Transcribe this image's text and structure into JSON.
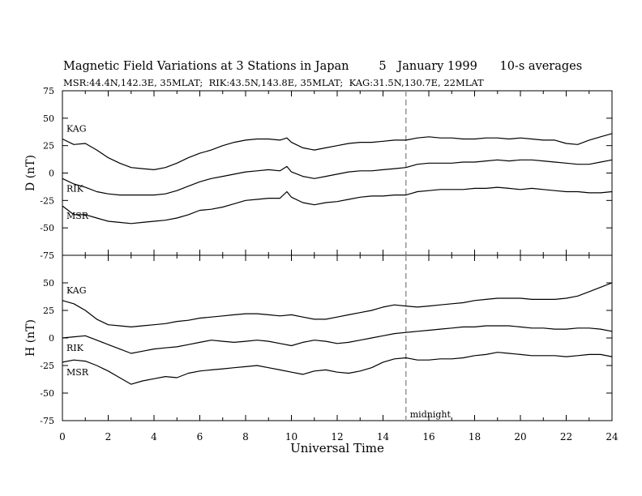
{
  "header": {
    "title": "Magnetic Field Variations at 3 Stations in Japan        5   January 1999      10-s averages",
    "subtitle": "MSR:44.4N,142.3E, 35MLAT;  RIK:43.5N,143.8E, 35MLAT;  KAG:31.5N,130.7E, 22MLAT"
  },
  "chart_data": [
    {
      "type": "line",
      "panel": "D",
      "ylabel": "D (nT)",
      "xlim": [
        0,
        24
      ],
      "ylim": [
        -75,
        75
      ],
      "yticks": [
        -75,
        -50,
        -25,
        0,
        25,
        50,
        75
      ],
      "x": [
        0,
        0.5,
        1,
        1.5,
        2,
        2.5,
        3,
        3.5,
        4,
        4.5,
        5,
        5.5,
        6,
        6.5,
        7,
        7.5,
        8,
        8.5,
        9,
        9.5,
        9.8,
        10,
        10.5,
        11,
        11.5,
        12,
        12.5,
        13,
        13.5,
        14,
        14.5,
        15,
        15.5,
        16,
        16.5,
        17,
        17.5,
        18,
        18.5,
        19,
        19.5,
        20,
        20.5,
        21,
        21.5,
        22,
        22.5,
        23,
        23.5,
        24
      ],
      "series": [
        {
          "name": "KAG",
          "values": [
            31,
            26,
            27,
            21,
            14,
            9,
            5,
            4,
            3,
            5,
            9,
            14,
            18,
            21,
            25,
            28,
            30,
            31,
            31,
            30,
            32,
            28,
            23,
            21,
            23,
            25,
            27,
            28,
            28,
            29,
            30,
            30,
            32,
            33,
            32,
            32,
            31,
            31,
            32,
            32,
            31,
            32,
            31,
            30,
            30,
            27,
            26,
            30,
            33,
            36
          ]
        },
        {
          "name": "RIK",
          "values": [
            -5,
            -10,
            -13,
            -17,
            -19,
            -20,
            -20,
            -20,
            -20,
            -19,
            -16,
            -12,
            -8,
            -5,
            -3,
            -1,
            1,
            2,
            3,
            2,
            6,
            1,
            -3,
            -5,
            -3,
            -1,
            1,
            2,
            2,
            3,
            4,
            5,
            8,
            9,
            9,
            9,
            10,
            10,
            11,
            12,
            11,
            12,
            12,
            11,
            10,
            9,
            8,
            8,
            10,
            12
          ]
        },
        {
          "name": "MSR",
          "values": [
            -30,
            -38,
            -38,
            -41,
            -44,
            -45,
            -46,
            -45,
            -44,
            -43,
            -41,
            -38,
            -34,
            -33,
            -31,
            -28,
            -25,
            -24,
            -23,
            -23,
            -17,
            -22,
            -27,
            -29,
            -27,
            -26,
            -24,
            -22,
            -21,
            -21,
            -20,
            -20,
            -17,
            -16,
            -15,
            -15,
            -15,
            -14,
            -14,
            -13,
            -14,
            -15,
            -14,
            -15,
            -16,
            -17,
            -17,
            -18,
            -18,
            -17
          ]
        }
      ],
      "annotations": [
        {
          "text": "KAG",
          "series": "KAG"
        },
        {
          "text": "RIK",
          "series": "RIK"
        },
        {
          "text": "MSR",
          "series": "MSR"
        }
      ],
      "midnight_line_x": 15,
      "colors": {
        "lines": "#000000",
        "midnight": "#999999"
      }
    },
    {
      "type": "line",
      "panel": "H",
      "ylabel": "H (nT)",
      "xlabel": "Universal Time",
      "xlim": [
        0,
        24
      ],
      "ylim": [
        -75,
        75
      ],
      "yticks": [
        -75,
        -50,
        -25,
        0,
        25,
        50
      ],
      "xticks": [
        0,
        2,
        4,
        6,
        8,
        10,
        12,
        14,
        16,
        18,
        20,
        22,
        24
      ],
      "x": [
        0,
        0.5,
        1,
        1.5,
        2,
        2.5,
        3,
        3.5,
        4,
        4.5,
        5,
        5.5,
        6,
        6.5,
        7,
        7.5,
        8,
        8.5,
        9,
        9.5,
        10,
        10.5,
        11,
        11.5,
        12,
        12.5,
        13,
        13.5,
        14,
        14.5,
        15,
        15.5,
        16,
        16.5,
        17,
        17.5,
        18,
        18.5,
        19,
        19.5,
        20,
        20.5,
        21,
        21.5,
        22,
        22.5,
        23,
        23.5,
        24
      ],
      "series": [
        {
          "name": "KAG",
          "values": [
            34,
            31,
            25,
            17,
            12,
            11,
            10,
            11,
            12,
            13,
            15,
            16,
            18,
            19,
            20,
            21,
            22,
            22,
            21,
            20,
            21,
            19,
            17,
            17,
            19,
            21,
            23,
            25,
            28,
            30,
            29,
            28,
            29,
            30,
            31,
            32,
            34,
            35,
            36,
            36,
            36,
            35,
            35,
            35,
            36,
            38,
            42,
            46,
            50
          ]
        },
        {
          "name": "RIK",
          "values": [
            0,
            1,
            2,
            -2,
            -6,
            -10,
            -14,
            -12,
            -10,
            -9,
            -8,
            -6,
            -4,
            -2,
            -3,
            -4,
            -3,
            -2,
            -3,
            -5,
            -7,
            -4,
            -2,
            -3,
            -5,
            -4,
            -2,
            0,
            2,
            4,
            5,
            6,
            7,
            8,
            9,
            10,
            10,
            11,
            11,
            11,
            10,
            9,
            9,
            8,
            8,
            9,
            9,
            8,
            6
          ]
        },
        {
          "name": "MSR",
          "values": [
            -22,
            -20,
            -21,
            -25,
            -30,
            -36,
            -42,
            -39,
            -37,
            -35,
            -36,
            -32,
            -30,
            -29,
            -28,
            -27,
            -26,
            -25,
            -27,
            -29,
            -31,
            -33,
            -30,
            -29,
            -31,
            -32,
            -30,
            -27,
            -22,
            -19,
            -18,
            -20,
            -20,
            -19,
            -19,
            -18,
            -16,
            -15,
            -13,
            -14,
            -15,
            -16,
            -16,
            -16,
            -17,
            -16,
            -15,
            -15,
            -17
          ]
        }
      ],
      "annotations": [
        {
          "text": "KAG",
          "series": "KAG"
        },
        {
          "text": "RIK",
          "series": "RIK"
        },
        {
          "text": "MSR",
          "series": "MSR"
        },
        {
          "text": "midnight"
        }
      ],
      "midnight_line_x": 15,
      "colors": {
        "lines": "#000000",
        "midnight": "#999999"
      }
    }
  ]
}
